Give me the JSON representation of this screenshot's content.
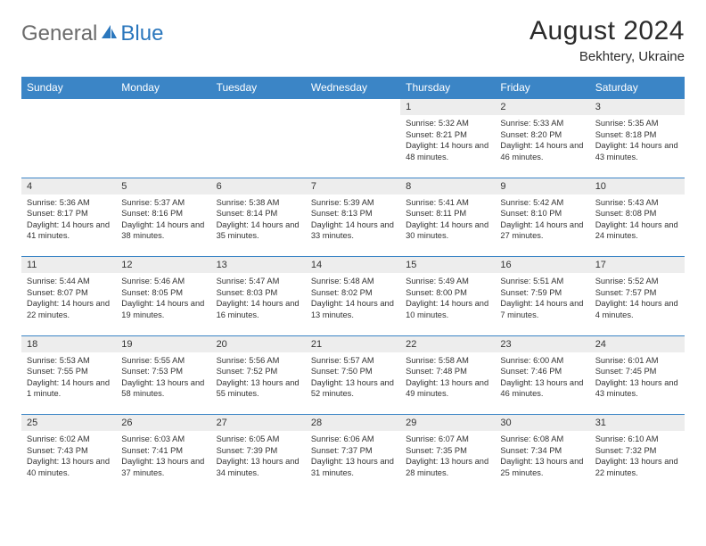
{
  "logo": {
    "part1": "General",
    "part2": "Blue"
  },
  "title": "August 2024",
  "location": "Bekhtery, Ukraine",
  "weekdays": [
    "Sunday",
    "Monday",
    "Tuesday",
    "Wednesday",
    "Thursday",
    "Friday",
    "Saturday"
  ],
  "colors": {
    "header_bg": "#3b85c6",
    "header_fg": "#ffffff",
    "daynum_bg": "#ededed",
    "rule": "#3b85c6",
    "text": "#333333",
    "logo_grey": "#6b6b6b",
    "logo_blue": "#2b77bd"
  },
  "weeks": [
    [
      null,
      null,
      null,
      null,
      {
        "n": "1",
        "sr": "5:32 AM",
        "ss": "8:21 PM",
        "dl": "14 hours and 48 minutes."
      },
      {
        "n": "2",
        "sr": "5:33 AM",
        "ss": "8:20 PM",
        "dl": "14 hours and 46 minutes."
      },
      {
        "n": "3",
        "sr": "5:35 AM",
        "ss": "8:18 PM",
        "dl": "14 hours and 43 minutes."
      }
    ],
    [
      {
        "n": "4",
        "sr": "5:36 AM",
        "ss": "8:17 PM",
        "dl": "14 hours and 41 minutes."
      },
      {
        "n": "5",
        "sr": "5:37 AM",
        "ss": "8:16 PM",
        "dl": "14 hours and 38 minutes."
      },
      {
        "n": "6",
        "sr": "5:38 AM",
        "ss": "8:14 PM",
        "dl": "14 hours and 35 minutes."
      },
      {
        "n": "7",
        "sr": "5:39 AM",
        "ss": "8:13 PM",
        "dl": "14 hours and 33 minutes."
      },
      {
        "n": "8",
        "sr": "5:41 AM",
        "ss": "8:11 PM",
        "dl": "14 hours and 30 minutes."
      },
      {
        "n": "9",
        "sr": "5:42 AM",
        "ss": "8:10 PM",
        "dl": "14 hours and 27 minutes."
      },
      {
        "n": "10",
        "sr": "5:43 AM",
        "ss": "8:08 PM",
        "dl": "14 hours and 24 minutes."
      }
    ],
    [
      {
        "n": "11",
        "sr": "5:44 AM",
        "ss": "8:07 PM",
        "dl": "14 hours and 22 minutes."
      },
      {
        "n": "12",
        "sr": "5:46 AM",
        "ss": "8:05 PM",
        "dl": "14 hours and 19 minutes."
      },
      {
        "n": "13",
        "sr": "5:47 AM",
        "ss": "8:03 PM",
        "dl": "14 hours and 16 minutes."
      },
      {
        "n": "14",
        "sr": "5:48 AM",
        "ss": "8:02 PM",
        "dl": "14 hours and 13 minutes."
      },
      {
        "n": "15",
        "sr": "5:49 AM",
        "ss": "8:00 PM",
        "dl": "14 hours and 10 minutes."
      },
      {
        "n": "16",
        "sr": "5:51 AM",
        "ss": "7:59 PM",
        "dl": "14 hours and 7 minutes."
      },
      {
        "n": "17",
        "sr": "5:52 AM",
        "ss": "7:57 PM",
        "dl": "14 hours and 4 minutes."
      }
    ],
    [
      {
        "n": "18",
        "sr": "5:53 AM",
        "ss": "7:55 PM",
        "dl": "14 hours and 1 minute."
      },
      {
        "n": "19",
        "sr": "5:55 AM",
        "ss": "7:53 PM",
        "dl": "13 hours and 58 minutes."
      },
      {
        "n": "20",
        "sr": "5:56 AM",
        "ss": "7:52 PM",
        "dl": "13 hours and 55 minutes."
      },
      {
        "n": "21",
        "sr": "5:57 AM",
        "ss": "7:50 PM",
        "dl": "13 hours and 52 minutes."
      },
      {
        "n": "22",
        "sr": "5:58 AM",
        "ss": "7:48 PM",
        "dl": "13 hours and 49 minutes."
      },
      {
        "n": "23",
        "sr": "6:00 AM",
        "ss": "7:46 PM",
        "dl": "13 hours and 46 minutes."
      },
      {
        "n": "24",
        "sr": "6:01 AM",
        "ss": "7:45 PM",
        "dl": "13 hours and 43 minutes."
      }
    ],
    [
      {
        "n": "25",
        "sr": "6:02 AM",
        "ss": "7:43 PM",
        "dl": "13 hours and 40 minutes."
      },
      {
        "n": "26",
        "sr": "6:03 AM",
        "ss": "7:41 PM",
        "dl": "13 hours and 37 minutes."
      },
      {
        "n": "27",
        "sr": "6:05 AM",
        "ss": "7:39 PM",
        "dl": "13 hours and 34 minutes."
      },
      {
        "n": "28",
        "sr": "6:06 AM",
        "ss": "7:37 PM",
        "dl": "13 hours and 31 minutes."
      },
      {
        "n": "29",
        "sr": "6:07 AM",
        "ss": "7:35 PM",
        "dl": "13 hours and 28 minutes."
      },
      {
        "n": "30",
        "sr": "6:08 AM",
        "ss": "7:34 PM",
        "dl": "13 hours and 25 minutes."
      },
      {
        "n": "31",
        "sr": "6:10 AM",
        "ss": "7:32 PM",
        "dl": "13 hours and 22 minutes."
      }
    ]
  ],
  "labels": {
    "sunrise": "Sunrise: ",
    "sunset": "Sunset: ",
    "daylight": "Daylight: "
  }
}
